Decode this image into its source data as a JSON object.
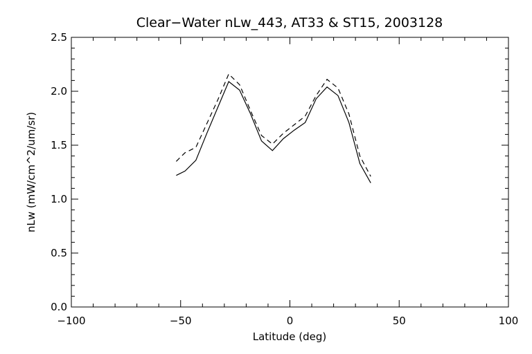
{
  "chart_data": {
    "type": "line",
    "title": "Clear−Water nLw_443, AT33 & ST15, 2003128",
    "xlabel": "Latitude (deg)",
    "ylabel": "nLw (mW/cm^2/um/sr)",
    "xlim": [
      -100,
      100
    ],
    "ylim": [
      0.0,
      2.5
    ],
    "xticks": [
      -100,
      -50,
      0,
      50,
      100
    ],
    "xtick_labels": [
      "−100",
      "−50",
      "0",
      "50",
      "100"
    ],
    "yticks": [
      0.0,
      0.5,
      1.0,
      1.5,
      2.0,
      2.5
    ],
    "ytick_labels": [
      "0.0",
      "0.5",
      "1.0",
      "1.5",
      "2.0",
      "2.5"
    ],
    "x_minor_step": 10,
    "y_minor_step": 0.1,
    "grid": false,
    "legend": "none",
    "series": [
      {
        "style": "solid",
        "x": [
          -52,
          -48,
          -43,
          -38,
          -33,
          -28,
          -23,
          -18,
          -13,
          -8,
          -3,
          2,
          7,
          12,
          17,
          22,
          27,
          32,
          37
        ],
        "y": [
          1.22,
          1.26,
          1.36,
          1.61,
          1.85,
          2.09,
          2.01,
          1.79,
          1.54,
          1.45,
          1.56,
          1.64,
          1.71,
          1.93,
          2.04,
          1.96,
          1.71,
          1.33,
          1.15
        ]
      },
      {
        "style": "dashed",
        "x": [
          -52,
          -48,
          -43,
          -38,
          -33,
          -28,
          -23,
          -18,
          -13,
          -8,
          -3,
          2,
          7,
          12,
          17,
          22,
          27,
          32,
          37
        ],
        "y": [
          1.35,
          1.43,
          1.48,
          1.7,
          1.92,
          2.16,
          2.06,
          1.82,
          1.59,
          1.51,
          1.61,
          1.69,
          1.77,
          1.96,
          2.11,
          2.03,
          1.79,
          1.4,
          1.21
        ]
      }
    ]
  }
}
